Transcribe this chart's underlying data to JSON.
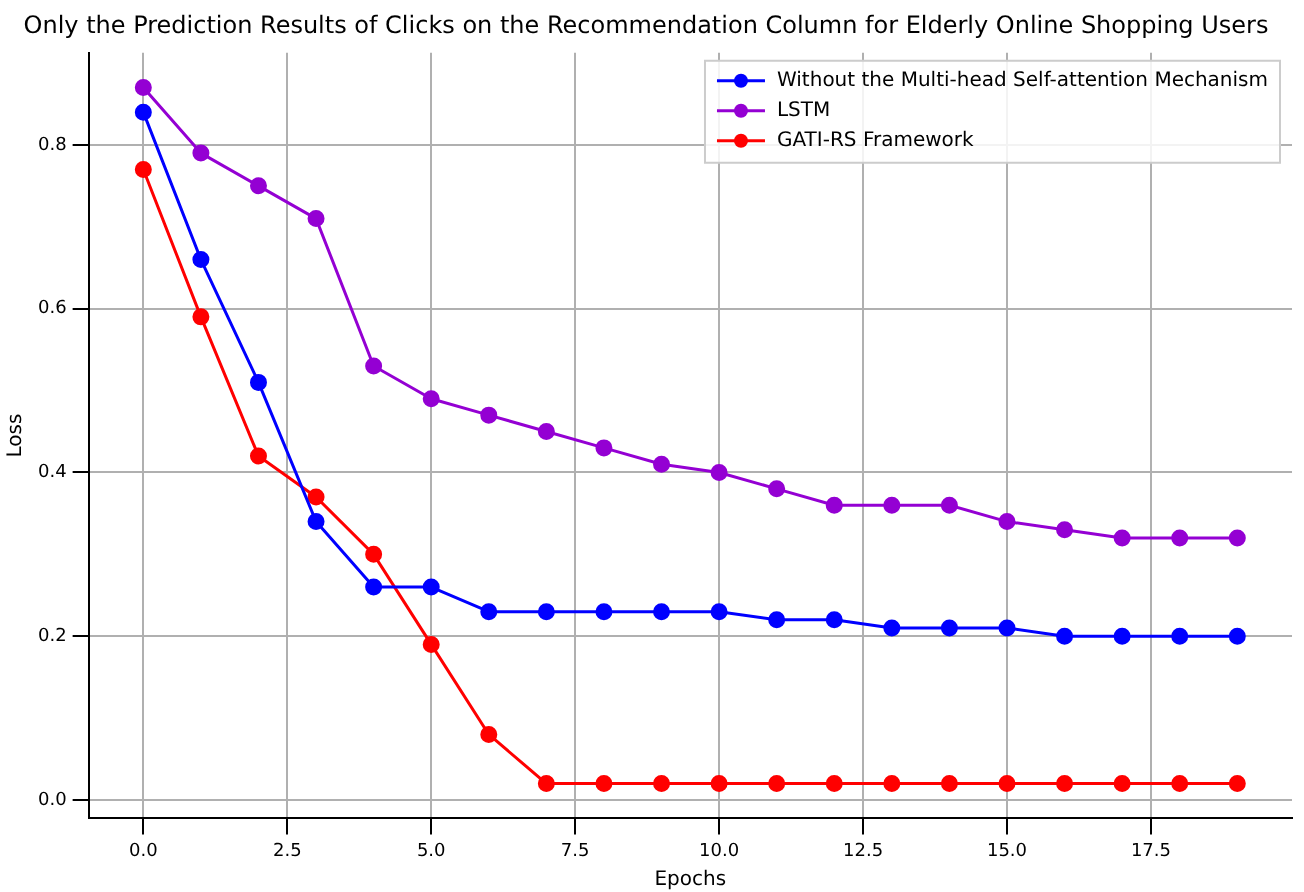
{
  "chart_data": {
    "type": "line",
    "title": "Only the Prediction Results of Clicks on the Recommendation Column for Elderly Online Shopping Users",
    "xlabel": "Epochs",
    "ylabel": "Loss",
    "x": [
      0,
      1,
      2,
      3,
      4,
      5,
      6,
      7,
      8,
      9,
      10,
      11,
      12,
      13,
      14,
      15,
      16,
      17,
      18,
      19
    ],
    "series": [
      {
        "name": "Without the Multi-head Self-attention Mechanism",
        "color": "#0000ff",
        "values": [
          0.84,
          0.66,
          0.51,
          0.34,
          0.26,
          0.26,
          0.23,
          0.23,
          0.23,
          0.23,
          0.23,
          0.22,
          0.22,
          0.21,
          0.21,
          0.21,
          0.2,
          0.2,
          0.2,
          0.2
        ]
      },
      {
        "name": "LSTM",
        "color": "#9400d3",
        "values": [
          0.87,
          0.79,
          0.75,
          0.71,
          0.53,
          0.49,
          0.47,
          0.45,
          0.43,
          0.41,
          0.4,
          0.38,
          0.36,
          0.36,
          0.36,
          0.34,
          0.33,
          0.32,
          0.32,
          0.32
        ]
      },
      {
        "name": "GATI-RS Framework",
        "color": "#ff0000",
        "values": [
          0.77,
          0.59,
          0.42,
          0.37,
          0.3,
          0.19,
          0.08,
          0.02,
          0.02,
          0.02,
          0.02,
          0.02,
          0.02,
          0.02,
          0.02,
          0.02,
          0.02,
          0.02,
          0.02,
          0.02
        ]
      }
    ],
    "xlim": [
      -0.95,
      19.95
    ],
    "xticks": [
      {
        "value": 0,
        "label": "0.0"
      },
      {
        "value": 2.5,
        "label": "2.5"
      },
      {
        "value": 5,
        "label": "5.0"
      },
      {
        "value": 7.5,
        "label": "7.5"
      },
      {
        "value": 10,
        "label": "10.0"
      },
      {
        "value": 12.5,
        "label": "12.5"
      },
      {
        "value": 15,
        "label": "15.0"
      },
      {
        "value": 17.5,
        "label": "17.5"
      }
    ],
    "ylim": [
      -0.0225,
      0.9125
    ],
    "yticks": [
      {
        "value": 0,
        "label": "0.0"
      },
      {
        "value": 0.2,
        "label": "0.2"
      },
      {
        "value": 0.4,
        "label": "0.4"
      },
      {
        "value": 0.6,
        "label": "0.6"
      },
      {
        "value": 0.8,
        "label": "0.8"
      }
    ],
    "grid": true,
    "legend": "top right",
    "marker": "circle",
    "line_style": "solid"
  }
}
